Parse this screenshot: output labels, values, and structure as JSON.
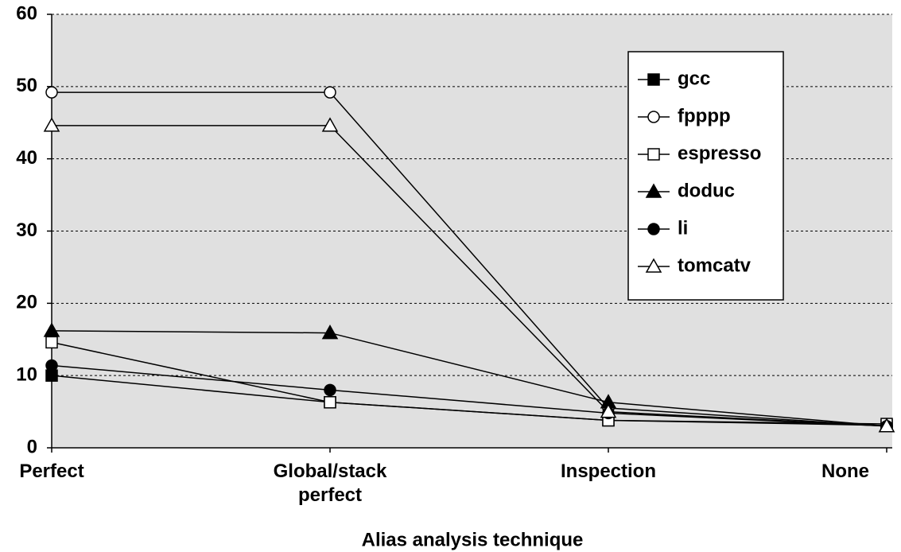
{
  "chart_data": {
    "type": "line",
    "x_label": "Alias analysis technique",
    "categories": [
      "Perfect",
      "Global/stack\nperfect",
      "Inspection",
      "None"
    ],
    "series": [
      {
        "name": "gcc",
        "color": "#000000",
        "marker": "square",
        "marker_fill": "#000000",
        "values": [
          10,
          6.3,
          3.8,
          3.1
        ]
      },
      {
        "name": "fpppp",
        "color": "#000000",
        "marker": "circle",
        "marker_fill": "#ffffff",
        "values": [
          49.2,
          49.2,
          5.5,
          3
        ]
      },
      {
        "name": "espresso",
        "color": "#000000",
        "marker": "square",
        "marker_fill": "#ffffff",
        "values": [
          14.6,
          6.3,
          3.8,
          3.3
        ]
      },
      {
        "name": "doduc",
        "color": "#000000",
        "marker": "triangle",
        "marker_fill": "#000000",
        "values": [
          16.2,
          15.9,
          6.3,
          3
        ]
      },
      {
        "name": "li",
        "color": "#000000",
        "marker": "circle",
        "marker_fill": "#000000",
        "values": [
          11.4,
          8,
          4.8,
          3
        ]
      },
      {
        "name": "tomcatv",
        "color": "#000000",
        "marker": "triangle",
        "marker_fill": "#ffffff",
        "values": [
          44.6,
          44.6,
          5,
          3
        ]
      }
    ],
    "ylim": [
      0,
      60
    ],
    "yticks": [
      0,
      10,
      20,
      30,
      40,
      50,
      60
    ],
    "grid": true,
    "legend": "upper-right"
  }
}
